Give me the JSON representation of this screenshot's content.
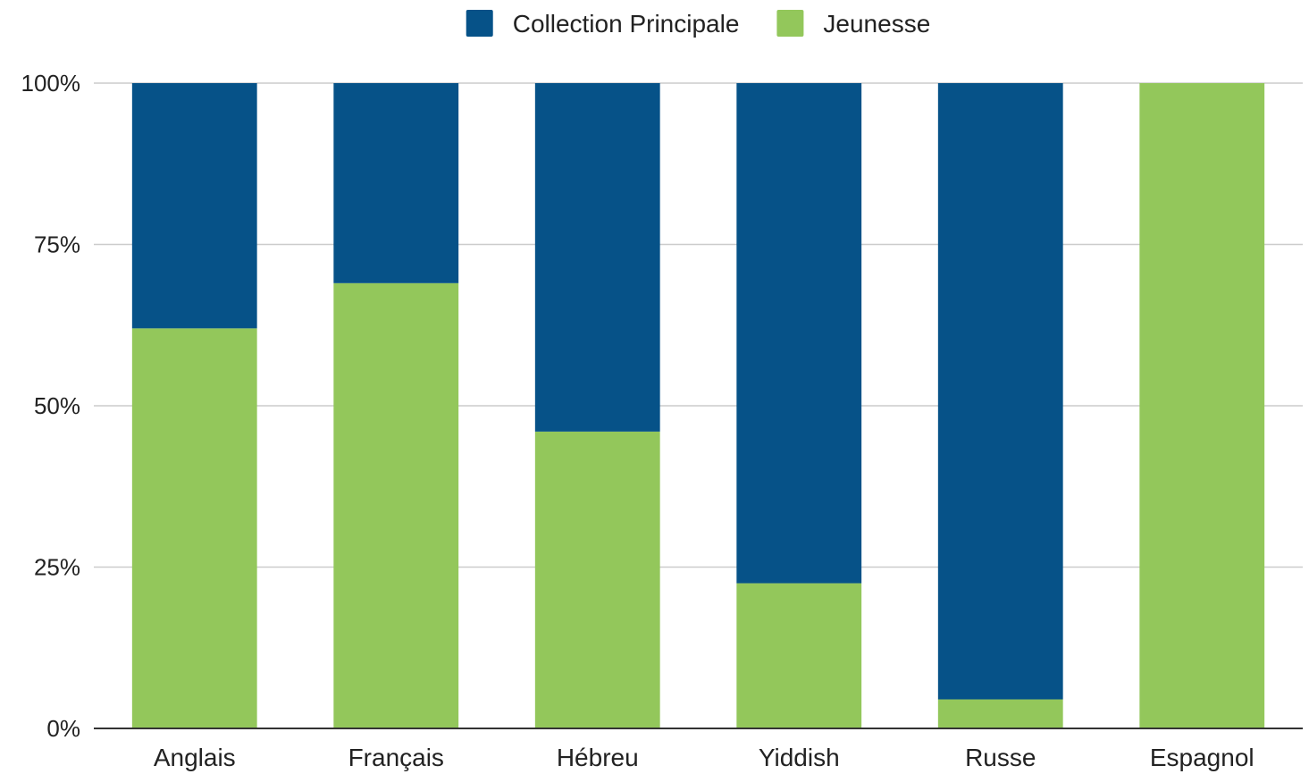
{
  "chart_data": {
    "type": "bar",
    "stacked": "percent",
    "categories": [
      "Anglais",
      "Français",
      "Hébreu",
      "Yiddish",
      "Russe",
      "Espagnol"
    ],
    "series": [
      {
        "name": "Jeunesse",
        "color": "#93c75b",
        "values": [
          62,
          69,
          46,
          22.5,
          4.5,
          100
        ]
      },
      {
        "name": "Collection Principale",
        "color": "#065288",
        "values": [
          38,
          31,
          54,
          77.5,
          95.5,
          0
        ]
      }
    ],
    "legend_order": [
      "Collection Principale",
      "Jeunesse"
    ],
    "legend_position": "top",
    "y_ticks": [
      "0%",
      "25%",
      "50%",
      "75%",
      "100%"
    ],
    "ylim": [
      0,
      100
    ],
    "grid": true,
    "title": "",
    "xlabel": "",
    "ylabel": ""
  }
}
